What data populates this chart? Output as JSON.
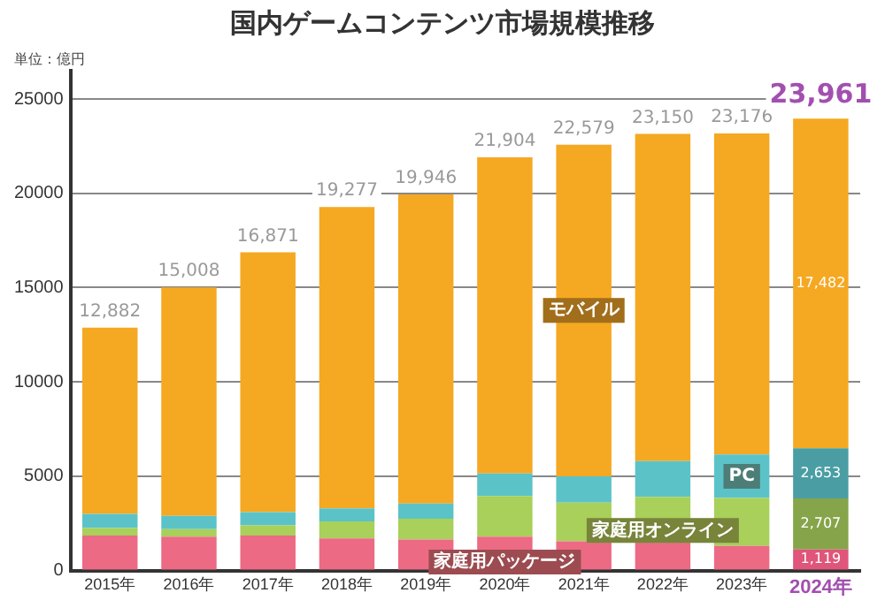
{
  "chart_data": {
    "type": "bar",
    "title": "国内ゲームコンテンツ市場規模推移",
    "categories": [
      "2015年",
      "2016年",
      "2017年",
      "2018年",
      "2019年",
      "2020年",
      "2021年",
      "2022年",
      "2023年",
      "2024年"
    ],
    "stacked": true,
    "series": [
      {
        "name": "家庭用パッケージ",
        "color": "#ec6a84",
        "colors": [
          "#ec6a84",
          "#ec6a84",
          "#ec6a84",
          "#ec6a84",
          "#ec6a84",
          "#ec6a84",
          "#ec6a84",
          "#ec6a84",
          "#ec6a84",
          "#e0557a"
        ],
        "values": [
          1850,
          1800,
          1850,
          1700,
          1650,
          1800,
          1550,
          1650,
          1300,
          1119
        ],
        "value_labels": [
          null,
          null,
          null,
          null,
          null,
          null,
          null,
          null,
          null,
          "1,119"
        ]
      },
      {
        "name": "家庭用オンライン",
        "color": "#a8d05a",
        "colors": [
          "#a8d05a",
          "#a8d05a",
          "#a8d05a",
          "#a8d05a",
          "#a8d05a",
          "#a8d05a",
          "#a8d05a",
          "#a8d05a",
          "#a8d05a",
          "#86a44a"
        ],
        "values": [
          400,
          400,
          550,
          900,
          1100,
          2150,
          2050,
          2250,
          2550,
          2707
        ],
        "value_labels": [
          null,
          null,
          null,
          null,
          null,
          null,
          null,
          null,
          null,
          "2,707"
        ]
      },
      {
        "name": "PC",
        "color": "#5bc3c8",
        "colors": [
          "#5bc3c8",
          "#5bc3c8",
          "#5bc3c8",
          "#5bc3c8",
          "#5bc3c8",
          "#5bc3c8",
          "#5bc3c8",
          "#5bc3c8",
          "#5bc3c8",
          "#4a9ea3"
        ],
        "values": [
          750,
          700,
          700,
          700,
          800,
          1200,
          1400,
          1900,
          2300,
          2653
        ],
        "value_labels": [
          null,
          null,
          null,
          null,
          null,
          null,
          null,
          null,
          null,
          "2,653"
        ]
      },
      {
        "name": "モバイル",
        "color": "#f5a821",
        "colors": [
          "#f5a821",
          "#f5a821",
          "#f5a821",
          "#f5a821",
          "#f5a821",
          "#f5a821",
          "#f5a821",
          "#f5a821",
          "#f5a821",
          "#f5a821"
        ],
        "values": [
          9882,
          12108,
          13771,
          15977,
          16396,
          16754,
          17579,
          17350,
          17026,
          17482
        ],
        "value_labels": [
          null,
          null,
          null,
          null,
          null,
          null,
          null,
          null,
          null,
          "17,482"
        ]
      }
    ],
    "totals": [
      "12,882",
      "15,008",
      "16,871",
      "19,277",
      "19,946",
      "21,904",
      "22,579",
      "23,150",
      "23,176",
      "23,961"
    ],
    "ylim": [
      0,
      26500
    ],
    "yticks": [
      0,
      5000,
      10000,
      15000,
      20000,
      25000
    ],
    "grid": "y",
    "legend": false,
    "annotations": [
      "単位：億円"
    ]
  }
}
